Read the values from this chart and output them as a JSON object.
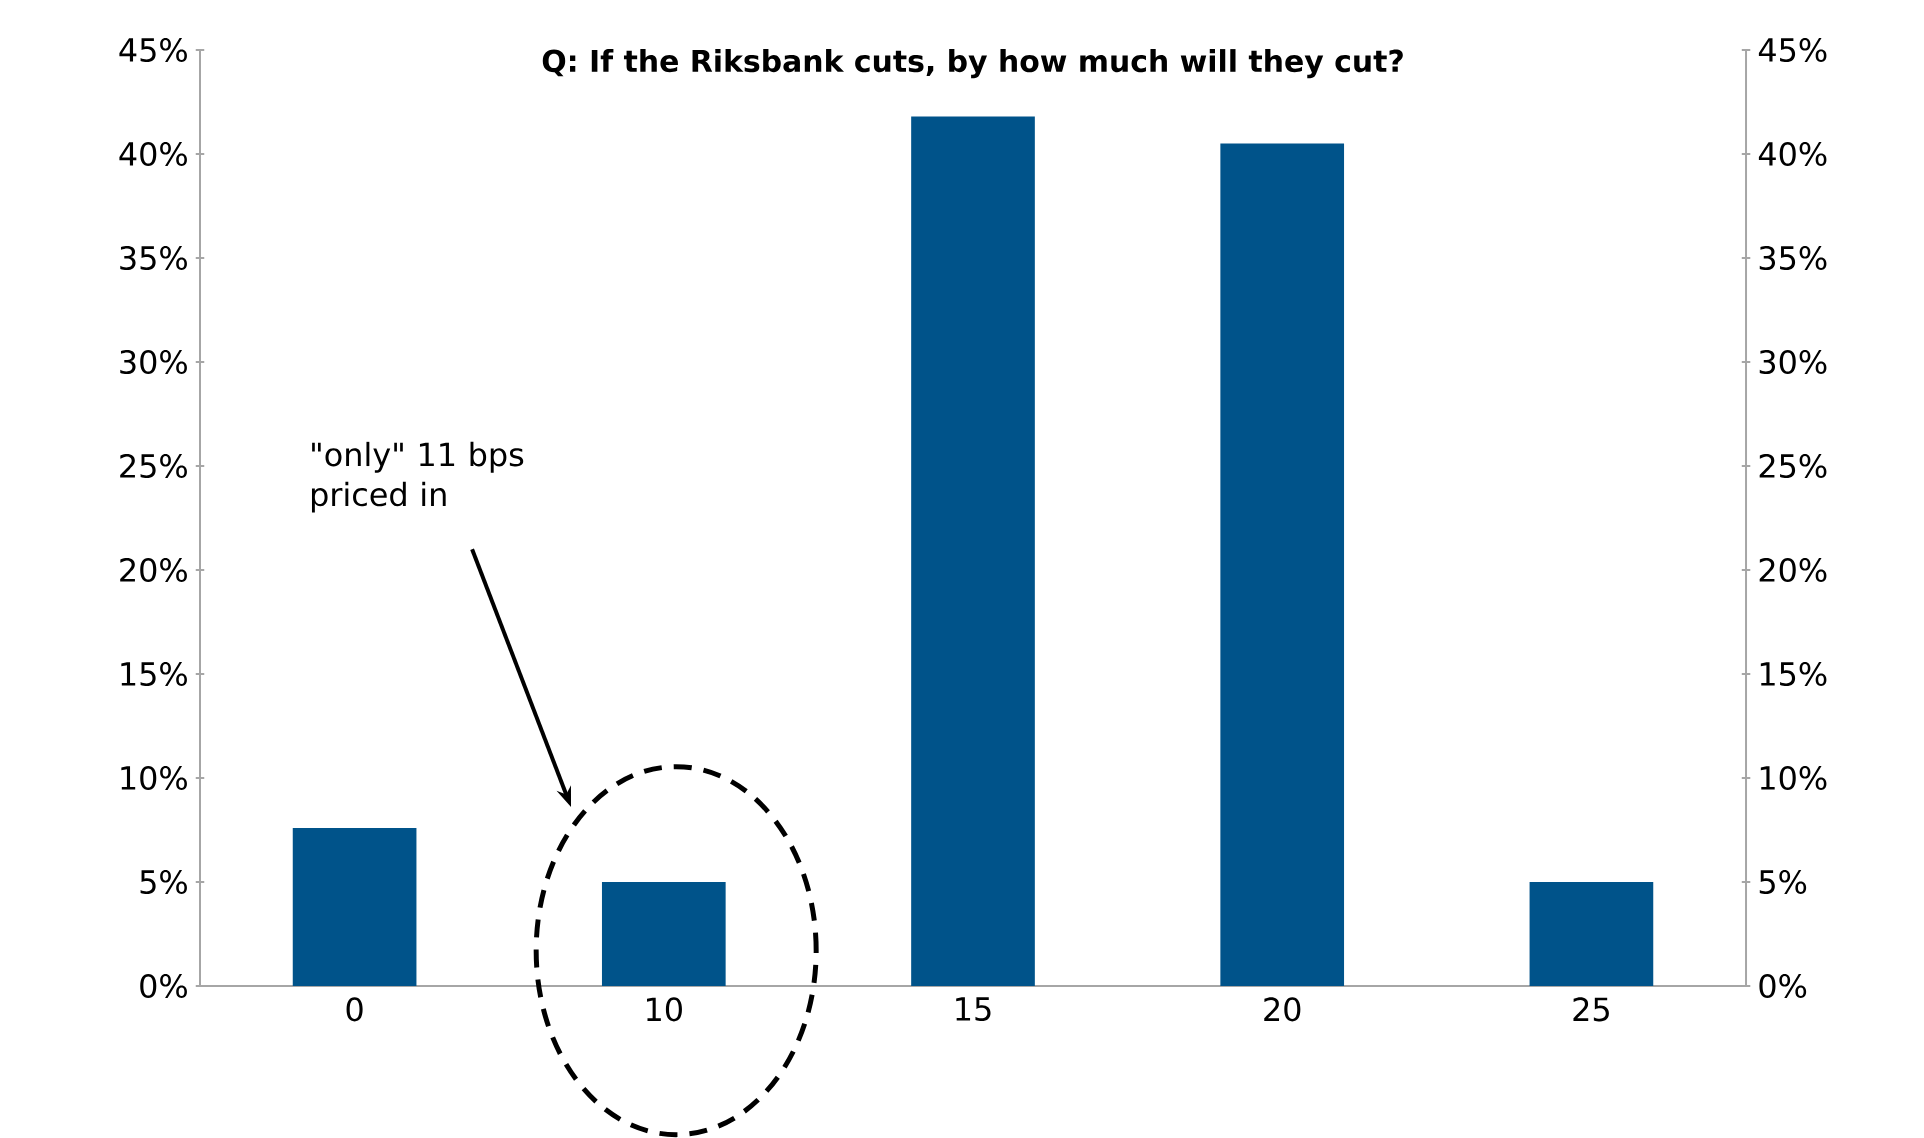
{
  "chart_data": {
    "type": "bar",
    "title": "Q: If the Riksbank cuts, by how much will they cut?",
    "categories": [
      "0",
      "10",
      "15",
      "20",
      "25"
    ],
    "values": [
      7.6,
      5,
      41.8,
      40.5,
      5
    ],
    "color": "#00538a",
    "ylim": [
      0,
      45
    ],
    "yticks": [
      {
        "value": 0,
        "label": "0%"
      },
      {
        "value": 5,
        "label": "5%"
      },
      {
        "value": 10,
        "label": "10%"
      },
      {
        "value": 15,
        "label": "15%"
      },
      {
        "value": 20,
        "label": "20%"
      },
      {
        "value": 25,
        "label": "25%"
      },
      {
        "value": 30,
        "label": "30%"
      },
      {
        "value": 35,
        "label": "35%"
      },
      {
        "value": 40,
        "label": "40%"
      },
      {
        "value": 45,
        "label": "45%"
      }
    ],
    "y2lim": [
      0,
      45
    ],
    "y2ticks": [
      {
        "value": 0,
        "label": "0%"
      },
      {
        "value": 5,
        "label": "5%"
      },
      {
        "value": 10,
        "label": "10%"
      },
      {
        "value": 15,
        "label": "15%"
      },
      {
        "value": 20,
        "label": "20%"
      },
      {
        "value": 25,
        "label": "25%"
      },
      {
        "value": 30,
        "label": "30%"
      },
      {
        "value": 35,
        "label": "35%"
      },
      {
        "value": 40,
        "label": "40%"
      },
      {
        "value": 45,
        "label": "45%"
      }
    ],
    "annotations": [
      "\"only\" 11 bps priced in"
    ],
    "grid": false
  }
}
